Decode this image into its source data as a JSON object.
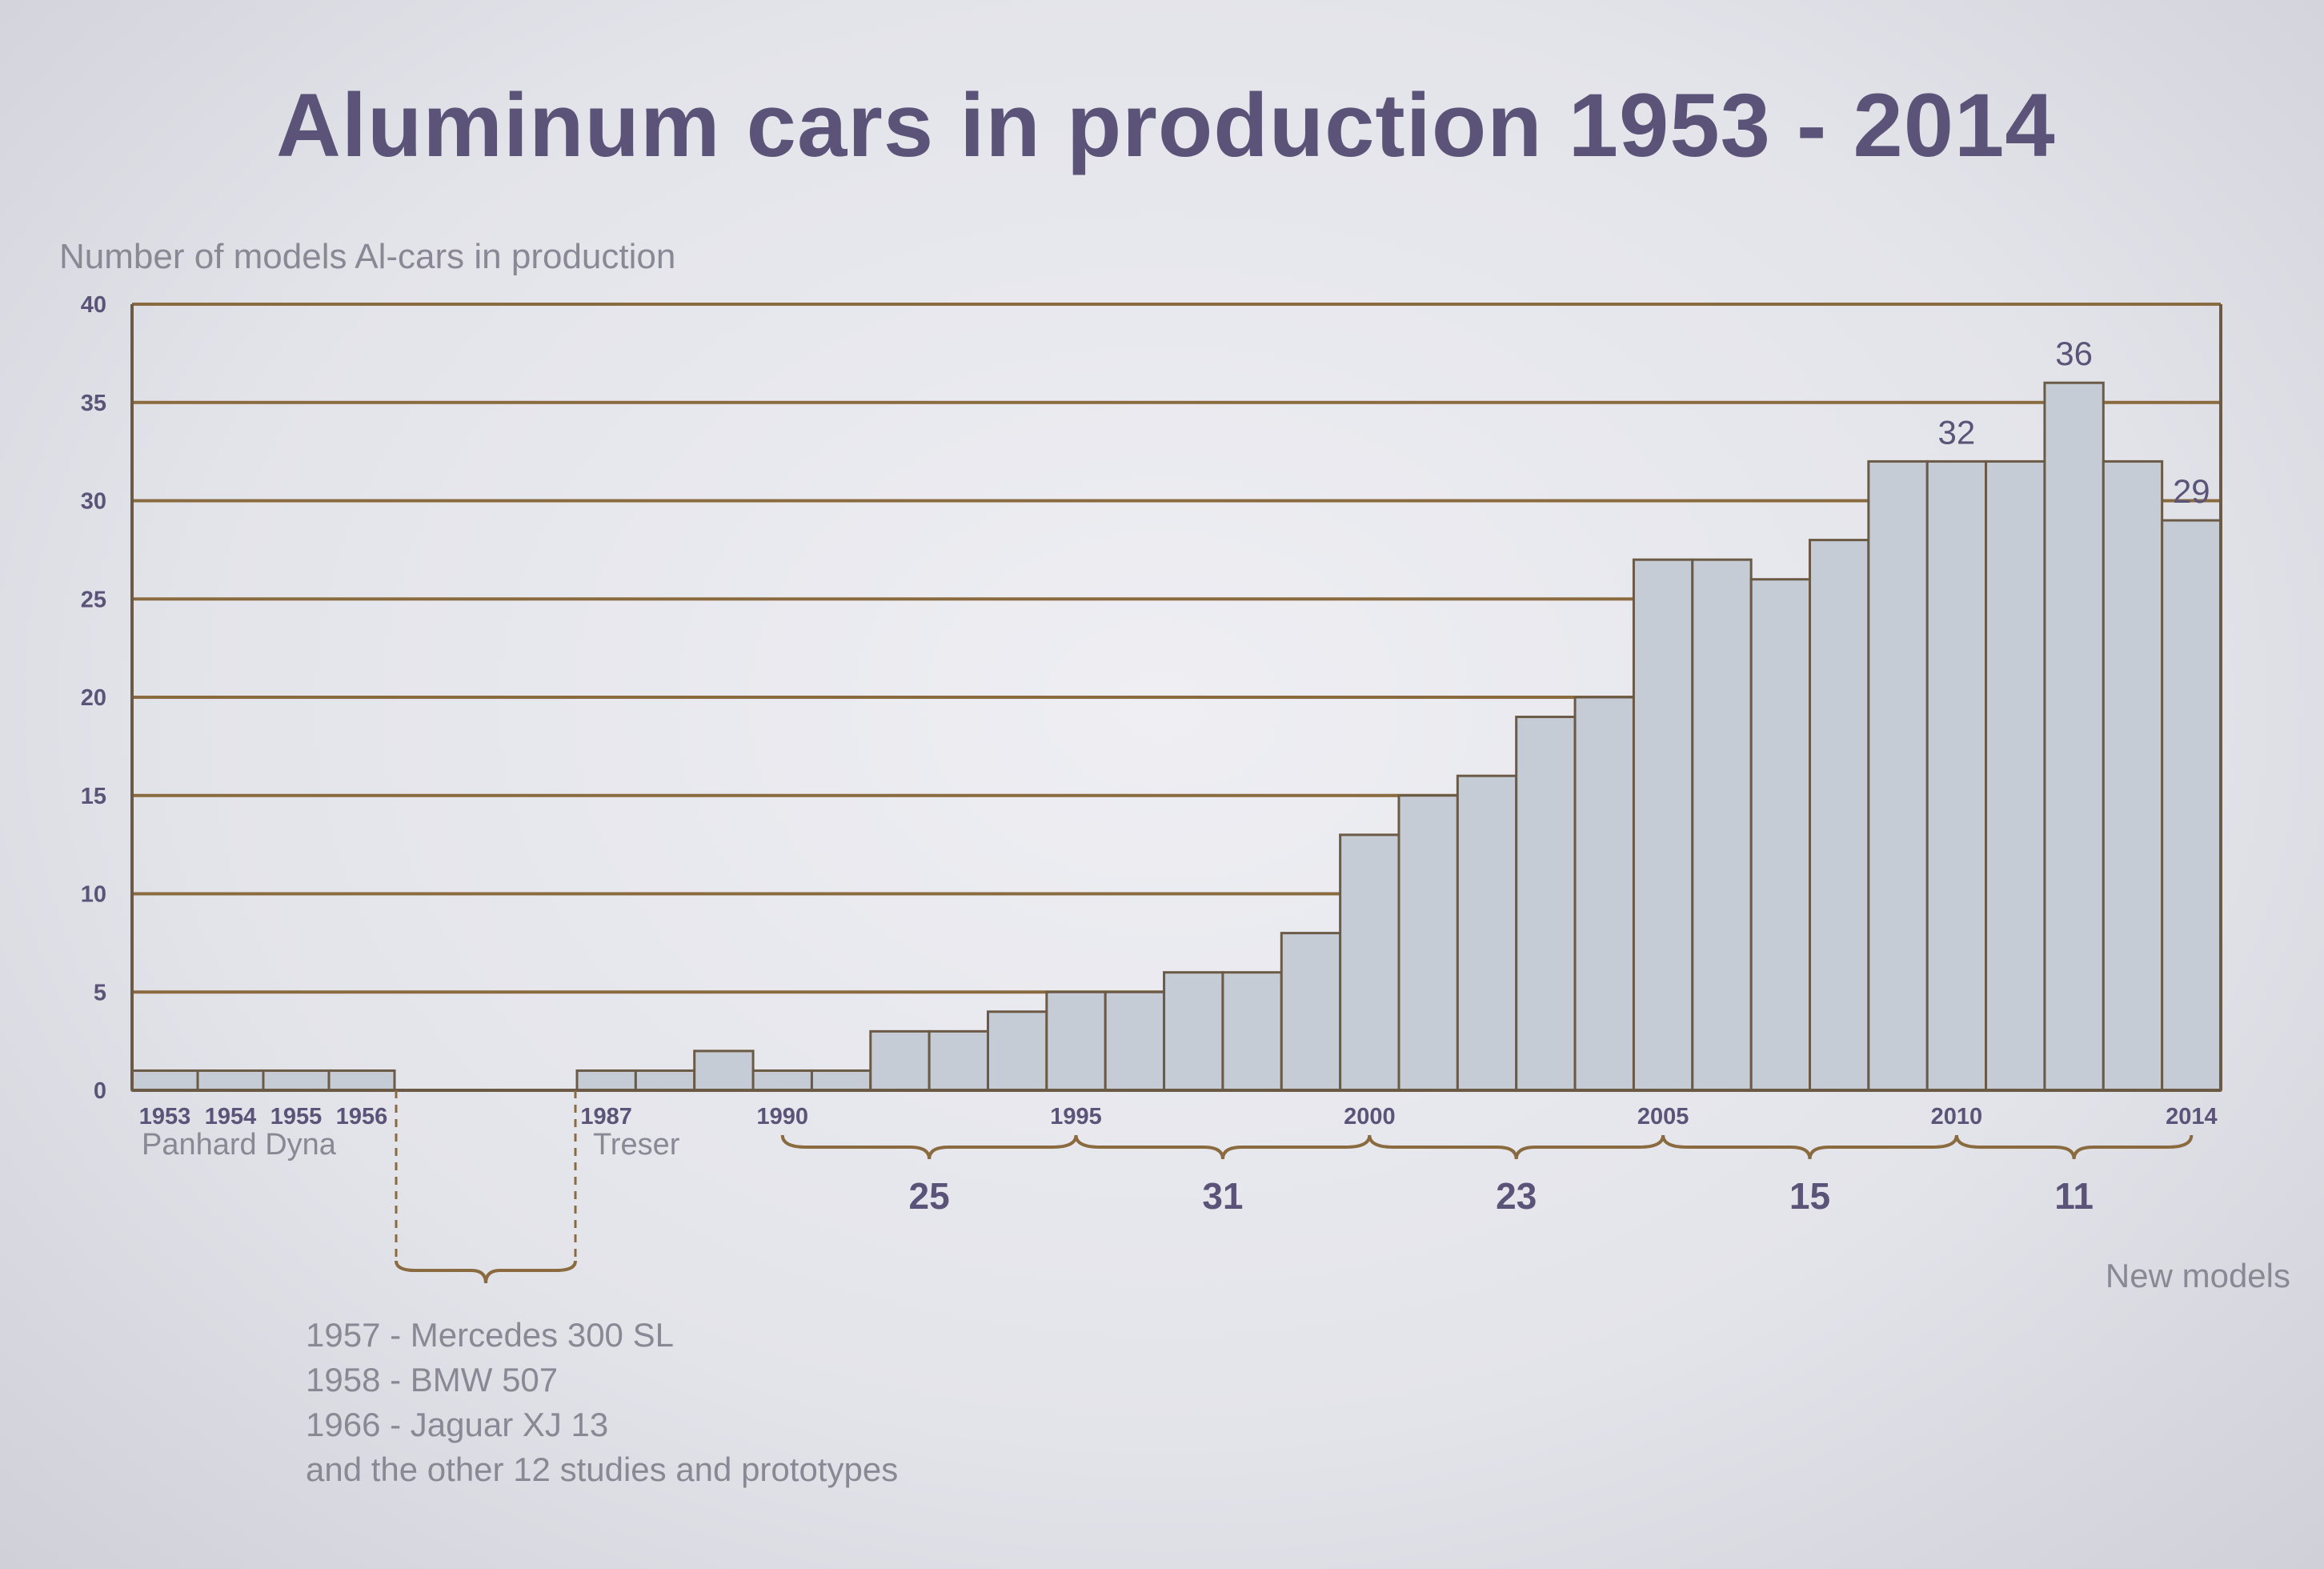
{
  "chart_data": {
    "type": "bar",
    "title": "Aluminum cars in production 1953 - 2014",
    "ylabel": "Number of models Al-cars in production",
    "xlabel": "",
    "ylim": [
      0,
      40
    ],
    "yticks": [
      "0",
      "5",
      "10",
      "15",
      "20",
      "25",
      "30",
      "35",
      "40"
    ],
    "grid": true,
    "categories": [
      "1953",
      "1954",
      "1955",
      "1956",
      "1987",
      "1988",
      "1989",
      "1990",
      "1991",
      "1992",
      "1993",
      "1994",
      "1995",
      "1996",
      "1997",
      "1998",
      "1999",
      "2000",
      "2001",
      "2002",
      "2003",
      "2004",
      "2005",
      "2006",
      "2007",
      "2008",
      "2009",
      "2010",
      "2011",
      "2012",
      "2013",
      "2014"
    ],
    "values": [
      1,
      1,
      1,
      1,
      1,
      1,
      2,
      1,
      1,
      3,
      3,
      4,
      5,
      5,
      6,
      6,
      8,
      13,
      15,
      16,
      19,
      20,
      27,
      27,
      26,
      28,
      32,
      32,
      32,
      36,
      32,
      29
    ],
    "xtick_labels": [
      {
        "category": "1953",
        "text": "1953"
      },
      {
        "category": "1954",
        "text": "1954"
      },
      {
        "category": "1955",
        "text": "1955"
      },
      {
        "category": "1956",
        "text": "1956"
      },
      {
        "category": "1987",
        "text": "1987"
      },
      {
        "category": "1990",
        "text": "1990"
      },
      {
        "category": "1995",
        "text": "1995"
      },
      {
        "category": "2000",
        "text": "2000"
      },
      {
        "category": "2005",
        "text": "2005"
      },
      {
        "category": "2010",
        "text": "2010"
      },
      {
        "category": "2014",
        "text": "2014"
      }
    ],
    "data_labels": [
      {
        "category": "2010",
        "text": "32"
      },
      {
        "category": "2012",
        "text": "36"
      },
      {
        "category": "2014",
        "text": "29"
      }
    ],
    "annotations": [
      {
        "category": "1953",
        "text": "Panhard Dyna"
      },
      {
        "category": "1987",
        "text": "Treser"
      }
    ],
    "new_models": {
      "label": "New models",
      "groups": [
        {
          "from": "1990",
          "to": "1995",
          "count": "25"
        },
        {
          "from": "1995",
          "to": "2000",
          "count": "31"
        },
        {
          "from": "2000",
          "to": "2005",
          "count": "23"
        },
        {
          "from": "2005",
          "to": "2010",
          "count": "15"
        },
        {
          "from": "2010",
          "to": "2014",
          "count": "11"
        }
      ]
    },
    "gap_notes": [
      "1957 - Mercedes 300 SL",
      "1958 - BMW 507",
      "1966 - Jaguar XJ 13",
      "and the other 12 studies and prototypes"
    ]
  }
}
